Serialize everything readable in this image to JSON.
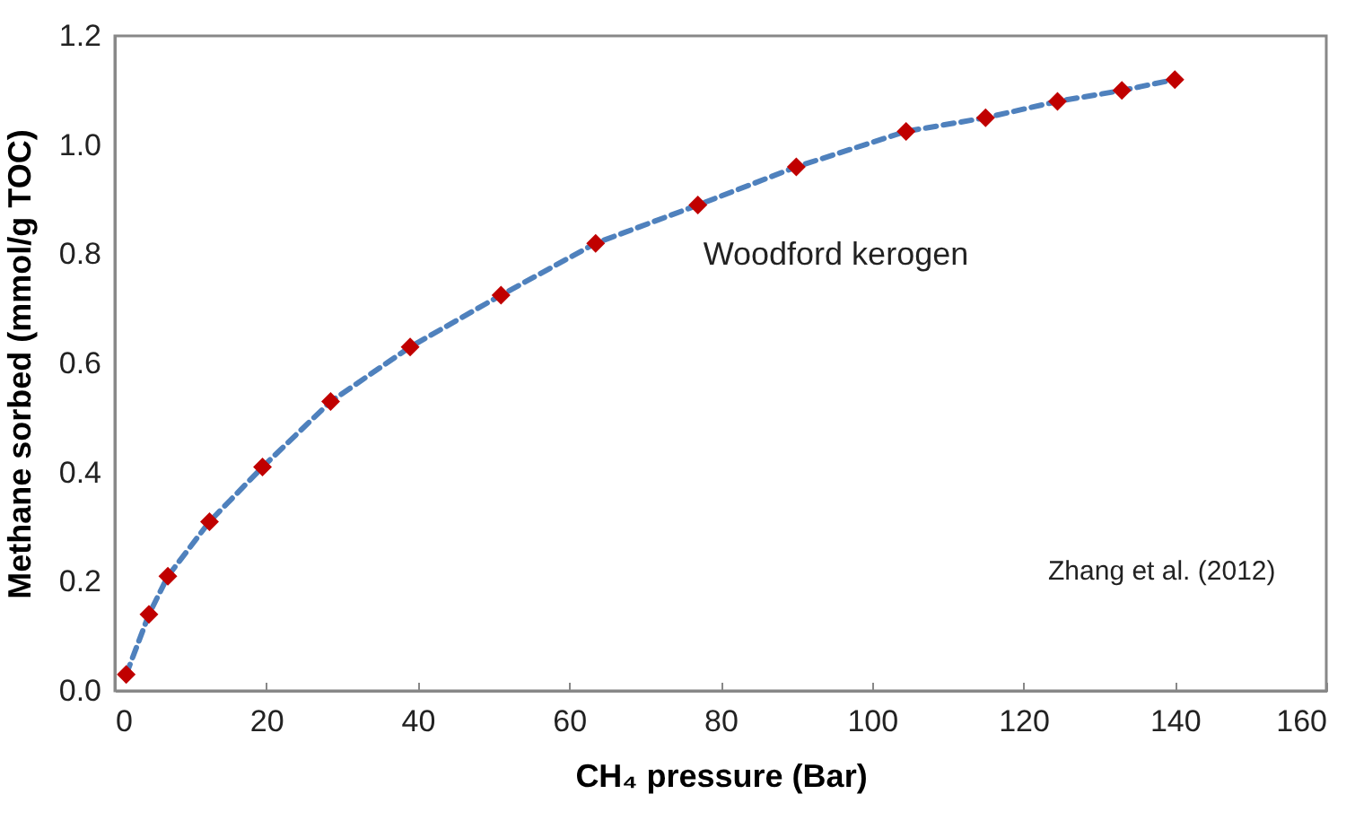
{
  "chart_data": {
    "type": "line",
    "xlabel": "CH₄ pressure (Bar)",
    "ylabel": "Methane sorbed (mmol/g TOC)",
    "x": [
      1.5,
      4.5,
      7,
      12.5,
      19.5,
      28.5,
      39,
      51,
      63.5,
      77,
      90,
      104.5,
      115,
      124.5,
      133,
      140
    ],
    "series": [
      {
        "color": "#4f81bd",
        "marker": "none",
        "line_style": "dashed",
        "values": [
          0.03,
          0.14,
          0.21,
          0.31,
          0.41,
          0.53,
          0.63,
          0.725,
          0.82,
          0.89,
          0.96,
          1.025,
          1.05,
          1.08,
          1.1,
          1.12
        ]
      },
      {
        "type": "scatter",
        "name": "Woodford kerogen",
        "color": "#c00000",
        "marker": "diamond",
        "values": [
          0.03,
          0.14,
          0.21,
          0.31,
          0.41,
          0.53,
          0.63,
          0.725,
          0.82,
          0.89,
          0.96,
          1.025,
          1.05,
          1.08,
          1.1,
          1.12
        ]
      }
    ],
    "xlim": [
      0,
      160
    ],
    "xticks": [
      0,
      20,
      40,
      60,
      80,
      100,
      120,
      140,
      160
    ],
    "ylim": [
      0,
      1.2
    ],
    "yticks": [
      {
        "value": 0,
        "label": "0.0"
      },
      0.2,
      0.4,
      0.6,
      0.8,
      {
        "value": 1,
        "label": "1.0"
      },
      1.2
    ],
    "annotations": [
      "Zhang et al. (2012)"
    ]
  }
}
